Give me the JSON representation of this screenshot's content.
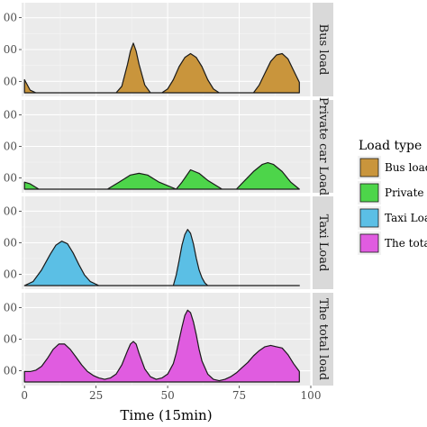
{
  "chart_data": {
    "type": "area",
    "xlabel": "Time (15min)",
    "x_ticks": [
      "0",
      "25",
      "50",
      "75",
      "100"
    ],
    "xlim": [
      -1,
      100
    ],
    "y_tick_labels": [
      "00",
      "00",
      "00"
    ],
    "facet_order": [
      "Bus load",
      "Private car Load",
      "Taxi Load",
      "The total load"
    ],
    "legend": {
      "title": "Load type",
      "position": "right",
      "entries": [
        {
          "label": "Bus load",
          "color": "#c9953c"
        },
        {
          "label": "Private c",
          "color": "#4dd54a"
        },
        {
          "label": "Taxi Loa",
          "color": "#5bbfe5"
        },
        {
          "label": "The total",
          "color": "#e05ce0"
        }
      ]
    },
    "series": [
      {
        "name": "Bus load",
        "color": "#c9953c",
        "x": [
          0,
          2,
          4,
          32,
          34,
          36,
          37,
          38,
          39,
          40,
          42,
          44,
          48,
          50,
          52,
          54,
          56,
          58,
          60,
          62,
          64,
          66,
          68,
          70,
          80,
          82,
          84,
          86,
          88,
          90,
          92,
          94,
          96
        ],
        "y": [
          0.1,
          0.02,
          0,
          0,
          0.05,
          0.22,
          0.32,
          0.38,
          0.32,
          0.22,
          0.06,
          0,
          0,
          0.03,
          0.1,
          0.2,
          0.27,
          0.3,
          0.27,
          0.2,
          0.1,
          0.03,
          0,
          0,
          0,
          0.06,
          0.15,
          0.24,
          0.29,
          0.3,
          0.26,
          0.17,
          0.08
        ]
      },
      {
        "name": "Private car Load",
        "color": "#4dd54a",
        "x": [
          0,
          2,
          5,
          29,
          33,
          37,
          40,
          43,
          47,
          53,
          55,
          58,
          61,
          64,
          69,
          74,
          77,
          80,
          83,
          85,
          87,
          90,
          93,
          96
        ],
        "y": [
          0.02,
          0.015,
          0,
          0,
          0.02,
          0.04,
          0.045,
          0.04,
          0.02,
          0,
          0.02,
          0.055,
          0.045,
          0.025,
          0,
          0,
          0.025,
          0.05,
          0.07,
          0.075,
          0.07,
          0.05,
          0.02,
          0
        ],
        "y_scale": 2.7
      },
      {
        "name": "Taxi Load",
        "color": "#5bbfe5",
        "x": [
          0,
          3,
          6,
          9,
          11,
          13,
          15,
          17,
          19,
          21,
          23,
          26,
          28,
          52,
          53,
          54,
          55,
          56,
          57,
          58,
          59,
          60,
          61,
          62,
          63,
          64,
          66,
          96
        ],
        "y": [
          0,
          0.03,
          0.12,
          0.24,
          0.31,
          0.34,
          0.32,
          0.25,
          0.16,
          0.08,
          0.03,
          0,
          0,
          0,
          0.08,
          0.19,
          0.31,
          0.39,
          0.43,
          0.4,
          0.32,
          0.21,
          0.12,
          0.06,
          0.02,
          0,
          0,
          0
        ]
      },
      {
        "name": "The total load",
        "color": "#e05ce0",
        "x": [
          0,
          2,
          4,
          6,
          8,
          10,
          12,
          14,
          16,
          18,
          20,
          22,
          24,
          26,
          28,
          30,
          32,
          34,
          36,
          37,
          38,
          39,
          40,
          42,
          44,
          46,
          48,
          50,
          52,
          53,
          54,
          55,
          56,
          57,
          58,
          59,
          60,
          61,
          62,
          64,
          66,
          68,
          70,
          72,
          74,
          76,
          78,
          80,
          82,
          84,
          86,
          88,
          90,
          92,
          94,
          96
        ],
        "y": [
          0.08,
          0.08,
          0.09,
          0.12,
          0.18,
          0.25,
          0.29,
          0.29,
          0.25,
          0.19,
          0.13,
          0.08,
          0.05,
          0.03,
          0.02,
          0.03,
          0.06,
          0.13,
          0.24,
          0.29,
          0.31,
          0.29,
          0.22,
          0.1,
          0.04,
          0.02,
          0.03,
          0.06,
          0.14,
          0.22,
          0.32,
          0.42,
          0.51,
          0.55,
          0.53,
          0.46,
          0.36,
          0.25,
          0.16,
          0.06,
          0.02,
          0.01,
          0.02,
          0.04,
          0.07,
          0.11,
          0.15,
          0.2,
          0.24,
          0.27,
          0.28,
          0.27,
          0.26,
          0.21,
          0.14,
          0.08
        ]
      }
    ]
  }
}
